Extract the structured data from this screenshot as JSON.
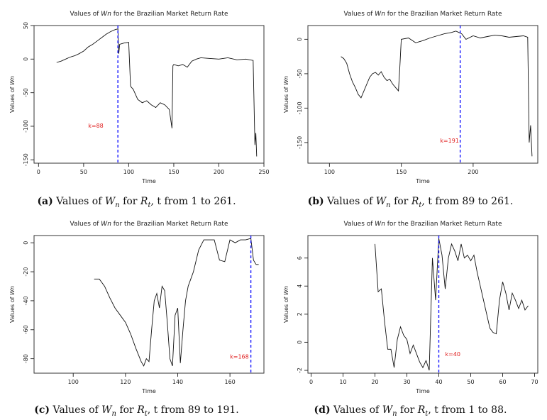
{
  "chart_data": [
    {
      "type": "line",
      "title_prefix": "Values of ",
      "title_var": "Wn",
      "title_suffix": " for the Brazilian Market Return Rate",
      "xlabel": "Time",
      "ylabel_prefix": "Values of ",
      "ylabel_var": "Wn",
      "xlim": [
        -5,
        250
      ],
      "ylim": [
        -155,
        50
      ],
      "xticks": [
        0,
        50,
        100,
        150,
        200,
        250
      ],
      "yticks": [
        50,
        0,
        -50,
        -100,
        -150
      ],
      "vline": 88,
      "annotation": "k=88",
      "annotation_pos": [
        55,
        -102
      ],
      "x": [
        20,
        25,
        30,
        35,
        40,
        45,
        50,
        55,
        60,
        65,
        70,
        75,
        80,
        85,
        88,
        89,
        90,
        95,
        100,
        102,
        103,
        105,
        110,
        115,
        120,
        125,
        130,
        135,
        140,
        145,
        148,
        149,
        150,
        155,
        160,
        165,
        170,
        175,
        180,
        190,
        200,
        210,
        220,
        230,
        238,
        240,
        241,
        242
      ],
      "y": [
        -5,
        -3,
        0,
        3,
        5,
        8,
        12,
        18,
        22,
        27,
        32,
        37,
        41,
        44,
        45,
        8,
        22,
        24,
        25,
        -40,
        -42,
        -45,
        -60,
        -65,
        -62,
        -68,
        -72,
        -65,
        -68,
        -75,
        -103,
        -10,
        -8,
        -10,
        -8,
        -12,
        -3,
        0,
        2,
        1,
        0,
        2,
        -1,
        0,
        -2,
        -128,
        -110,
        -145
      ],
      "caption_label": "(a)",
      "caption_text_1": " Values of ",
      "caption_var_main": "W",
      "caption_var_sub": "n",
      "caption_text_2": " for ",
      "caption_var2_main": "R",
      "caption_var2_sub": "t",
      "caption_text_3": ", t from 1 to 261."
    },
    {
      "type": "line",
      "title_prefix": "Values of ",
      "title_var": "Wn",
      "title_suffix": " for the Brazilian Market Return Rate",
      "xlabel": "Time",
      "ylabel_prefix": "Values of ",
      "ylabel_var": "Wn",
      "xlim": [
        85,
        245
      ],
      "ylim": [
        -180,
        20
      ],
      "xticks": [
        100,
        150,
        200
      ],
      "yticks": [
        0,
        -50,
        -100,
        -150
      ],
      "vline": 191,
      "annotation": "k=191",
      "annotation_pos": [
        177,
        -150
      ],
      "x": [
        108,
        110,
        112,
        114,
        116,
        118,
        120,
        122,
        124,
        126,
        128,
        130,
        132,
        134,
        136,
        138,
        140,
        142,
        144,
        146,
        148,
        149,
        150,
        155,
        160,
        165,
        170,
        175,
        180,
        185,
        188,
        190,
        192,
        195,
        200,
        205,
        210,
        215,
        220,
        225,
        230,
        235,
        238,
        239,
        240,
        241
      ],
      "y": [
        -25,
        -28,
        -35,
        -50,
        -62,
        -70,
        -80,
        -85,
        -75,
        -65,
        -55,
        -50,
        -48,
        -52,
        -47,
        -55,
        -60,
        -58,
        -65,
        -70,
        -75,
        -40,
        0,
        2,
        -5,
        -2,
        2,
        5,
        8,
        10,
        12,
        10,
        8,
        0,
        5,
        2,
        4,
        6,
        5,
        3,
        4,
        5,
        3,
        -150,
        -125,
        -170
      ],
      "caption_label": "(b)",
      "caption_text_1": " Values of ",
      "caption_var_main": "W",
      "caption_var_sub": "n",
      "caption_text_2": " for ",
      "caption_var2_main": "R",
      "caption_var2_sub": "t",
      "caption_text_3": ", t from 89 to 261."
    },
    {
      "type": "line",
      "title_prefix": "Values of ",
      "title_var": "Wn",
      "title_suffix": " for the Brazilian Market Return Rate",
      "xlabel": "Time",
      "ylabel_prefix": "Values of ",
      "ylabel_var": "Wn",
      "xlim": [
        85,
        173
      ],
      "ylim": [
        -90,
        5
      ],
      "xticks": [
        100,
        120,
        140,
        160
      ],
      "yticks": [
        0,
        -20,
        -40,
        -60,
        -80
      ],
      "vline": 168,
      "annotation": "k=168",
      "annotation_pos": [
        160,
        -80
      ],
      "x": [
        108,
        110,
        112,
        114,
        116,
        118,
        120,
        122,
        124,
        126,
        127,
        128,
        129,
        130,
        131,
        132,
        133,
        134,
        135,
        136,
        137,
        138,
        139,
        140,
        141,
        142,
        143,
        144,
        145,
        146,
        148,
        150,
        152,
        154,
        156,
        158,
        160,
        162,
        164,
        166,
        168,
        169,
        170,
        171
      ],
      "y": [
        -25,
        -25,
        -30,
        -38,
        -45,
        -50,
        -55,
        -63,
        -73,
        -82,
        -85,
        -80,
        -82,
        -60,
        -40,
        -35,
        -45,
        -30,
        -33,
        -55,
        -80,
        -85,
        -50,
        -45,
        -83,
        -60,
        -40,
        -30,
        -25,
        -20,
        -5,
        2,
        2,
        2,
        -12,
        -13,
        2,
        0,
        2,
        2,
        3,
        -12,
        -15,
        -15
      ],
      "caption_label": "(c)",
      "caption_text_1": " Values of ",
      "caption_var_main": "W",
      "caption_var_sub": "n",
      "caption_text_2": " for ",
      "caption_var2_main": "R",
      "caption_var2_sub": "t",
      "caption_text_3": ", t from 89 to 191."
    },
    {
      "type": "line",
      "title_prefix": "Values of ",
      "title_var": "Wn",
      "title_suffix": " for the Brazilian Market Return Rate",
      "xlabel": "Time",
      "ylabel_prefix": "Values of ",
      "ylabel_var": "Wn",
      "xlim": [
        -1,
        71
      ],
      "ylim": [
        -2.2,
        7.6
      ],
      "xticks": [
        0,
        10,
        20,
        30,
        40,
        50,
        60,
        70
      ],
      "yticks": [
        -2,
        0,
        2,
        4,
        6
      ],
      "vline": 40,
      "annotation": "k=40",
      "annotation_pos": [
        42,
        -1.0
      ],
      "x": [
        20,
        21,
        22,
        23,
        24,
        25,
        26,
        27,
        28,
        29,
        30,
        31,
        32,
        33,
        34,
        35,
        36,
        37,
        38,
        39,
        40,
        41,
        42,
        43,
        44,
        45,
        46,
        47,
        48,
        49,
        50,
        51,
        52,
        53,
        54,
        55,
        56,
        57,
        58,
        59,
        60,
        61,
        62,
        63,
        64,
        65,
        66,
        67,
        68
      ],
      "y": [
        7,
        3.6,
        3.8,
        1.5,
        -0.5,
        -0.5,
        -1.8,
        0.2,
        1.1,
        0.5,
        0.2,
        -0.8,
        -0.2,
        -0.8,
        -1.4,
        -1.8,
        -1.3,
        -2,
        6,
        3,
        7.4,
        6.2,
        3.8,
        6,
        7,
        6.5,
        5.8,
        7,
        6,
        6.2,
        5.8,
        6.2,
        5,
        4,
        3,
        2,
        1,
        0.7,
        0.6,
        3,
        4.3,
        3.5,
        2.3,
        3.5,
        3,
        2.4,
        3,
        2.3,
        2.6
      ],
      "caption_label": "(d)",
      "caption_text_1": " Values of ",
      "caption_var_main": "W",
      "caption_var_sub": "n",
      "caption_text_2": " for ",
      "caption_var2_main": "R",
      "caption_var2_sub": "t",
      "caption_text_3": ", t from 1 to 88."
    }
  ]
}
